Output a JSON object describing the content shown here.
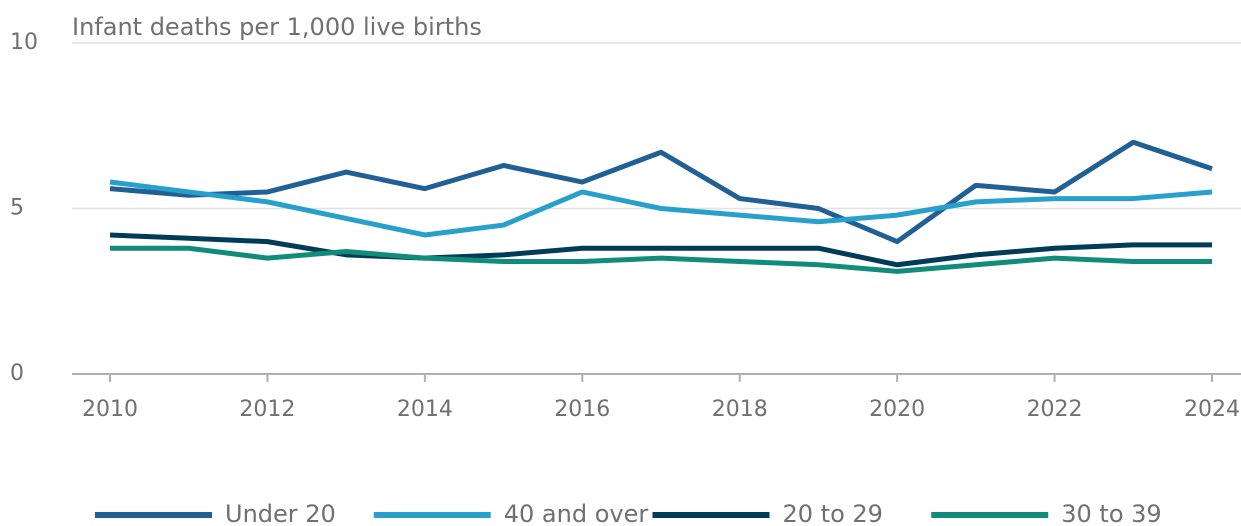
{
  "chart_data": {
    "type": "line",
    "y_label": "Infant deaths per 1,000 live births",
    "x": [
      2010,
      2011,
      2012,
      2013,
      2014,
      2015,
      2016,
      2017,
      2018,
      2019,
      2020,
      2021,
      2022,
      2023,
      2024
    ],
    "series": [
      {
        "name": "Under 20",
        "color": "#206095",
        "values": [
          5.6,
          5.4,
          5.5,
          6.1,
          5.6,
          6.3,
          5.8,
          6.7,
          5.3,
          5.0,
          4.0,
          5.7,
          5.5,
          7.0,
          6.2
        ]
      },
      {
        "name": "40 and over",
        "color": "#27a0cc",
        "values": [
          5.8,
          5.5,
          5.2,
          4.7,
          4.2,
          4.5,
          5.5,
          5.0,
          4.8,
          4.6,
          4.8,
          5.2,
          5.3,
          5.3,
          5.5
        ]
      },
      {
        "name": "20 to 29",
        "color": "#003c57",
        "values": [
          4.2,
          4.1,
          4.0,
          3.6,
          3.5,
          3.6,
          3.8,
          3.8,
          3.8,
          3.8,
          3.3,
          3.6,
          3.8,
          3.9,
          3.9
        ]
      },
      {
        "name": "30 to 39",
        "color": "#118c7b",
        "values": [
          3.8,
          3.8,
          3.5,
          3.7,
          3.5,
          3.4,
          3.4,
          3.5,
          3.4,
          3.3,
          3.1,
          3.3,
          3.5,
          3.4,
          3.4
        ]
      }
    ],
    "xlim": [
      2010,
      2024
    ],
    "xticks": [
      2010,
      2012,
      2014,
      2016,
      2018,
      2020,
      2022,
      2024
    ],
    "ylim": [
      0,
      10
    ],
    "yticks": [
      0,
      5,
      10
    ],
    "grid": true,
    "legend": "bottom"
  }
}
